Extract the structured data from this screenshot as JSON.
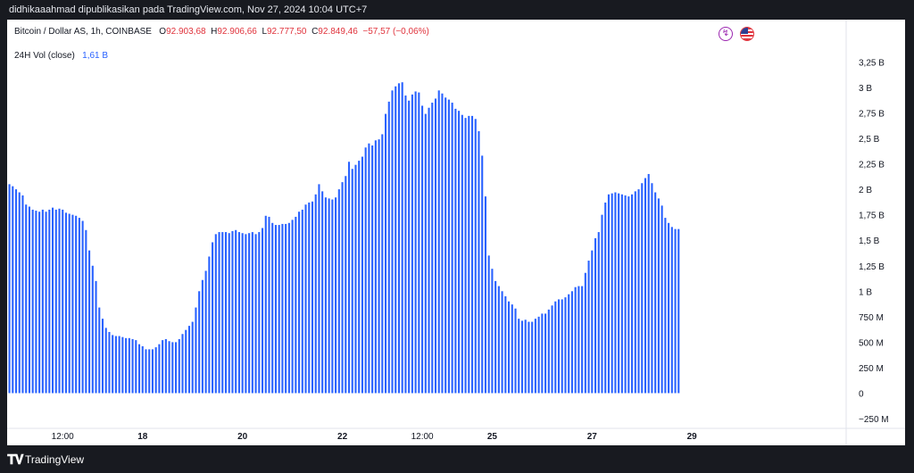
{
  "header": {
    "publish_line": "didhikaaahmad dipublikasikan pada TradingView.com, Nov 27, 2024 10:04 UTC+7"
  },
  "legend": {
    "symbol": "Bitcoin / Dollar AS, 1h, COINBASE",
    "open_label": "O",
    "open": "92.903,68",
    "high_label": "H",
    "high": "92.906,66",
    "low_label": "L",
    "low": "92.777,50",
    "close_label": "C",
    "close": "92.849,46",
    "change": "−57,57 (−0,06%)",
    "indicator_label": "24H Vol (close)",
    "indicator_value": "1,61 B"
  },
  "icons": [
    "lightning-icon",
    "us-flag-icon"
  ],
  "footer": {
    "brand": "TradingView",
    "logo": "TV-logo-icon"
  },
  "colors": {
    "bar": "#2962ff",
    "background": "#181a20",
    "panel": "#ffffff",
    "down": "#e0333c"
  },
  "chart_data": {
    "type": "bar",
    "title": "24H Vol (close)",
    "ylabel": "",
    "xlabel": "",
    "ylim": [
      -0.25,
      3.35
    ],
    "y_ticks": [
      {
        "v": 3.25,
        "label": "3,25 B"
      },
      {
        "v": 3.0,
        "label": "3 B"
      },
      {
        "v": 2.75,
        "label": "2,75 B"
      },
      {
        "v": 2.5,
        "label": "2,5 B"
      },
      {
        "v": 2.25,
        "label": "2,25 B"
      },
      {
        "v": 2.0,
        "label": "2 B"
      },
      {
        "v": 1.75,
        "label": "1,75 B"
      },
      {
        "v": 1.5,
        "label": "1,5 B"
      },
      {
        "v": 1.25,
        "label": "1,25 B"
      },
      {
        "v": 1.0,
        "label": "1 B"
      },
      {
        "v": 0.75,
        "label": "750 M"
      },
      {
        "v": 0.5,
        "label": "500 M"
      },
      {
        "v": 0.25,
        "label": "250 M"
      },
      {
        "v": 0.0,
        "label": "0"
      },
      {
        "v": -0.25,
        "label": "−250 M"
      }
    ],
    "x_ticks": [
      {
        "bar": 16,
        "label": "12:00",
        "bold": false
      },
      {
        "bar": 40,
        "label": "18",
        "bold": true
      },
      {
        "bar": 70,
        "label": "20",
        "bold": true
      },
      {
        "bar": 100,
        "label": "22",
        "bold": true
      },
      {
        "bar": 124,
        "label": "12:00",
        "bold": false
      },
      {
        "bar": 145,
        "label": "25",
        "bold": true
      },
      {
        "bar": 175,
        "label": "27",
        "bold": true
      },
      {
        "bar": 205,
        "label": "29",
        "bold": true
      }
    ],
    "series": [
      {
        "values": [
          2.05,
          2.03,
          2.0,
          1.97,
          1.94,
          1.85,
          1.83,
          1.8,
          1.79,
          1.78,
          1.8,
          1.78,
          1.8,
          1.82,
          1.8,
          1.81,
          1.8,
          1.77,
          1.76,
          1.75,
          1.74,
          1.72,
          1.69,
          1.6,
          1.4,
          1.25,
          1.1,
          0.84,
          0.73,
          0.64,
          0.6,
          0.57,
          0.56,
          0.56,
          0.55,
          0.54,
          0.54,
          0.53,
          0.52,
          0.48,
          0.46,
          0.43,
          0.43,
          0.43,
          0.45,
          0.48,
          0.52,
          0.53,
          0.51,
          0.5,
          0.5,
          0.53,
          0.58,
          0.62,
          0.66,
          0.7,
          0.84,
          1.0,
          1.11,
          1.2,
          1.34,
          1.48,
          1.56,
          1.58,
          1.58,
          1.58,
          1.57,
          1.59,
          1.6,
          1.58,
          1.57,
          1.56,
          1.57,
          1.58,
          1.56,
          1.58,
          1.62,
          1.74,
          1.73,
          1.67,
          1.65,
          1.65,
          1.66,
          1.66,
          1.67,
          1.7,
          1.73,
          1.78,
          1.8,
          1.85,
          1.87,
          1.88,
          1.95,
          2.05,
          1.98,
          1.92,
          1.91,
          1.9,
          1.92,
          2.0,
          2.07,
          2.13,
          2.27,
          2.2,
          2.24,
          2.28,
          2.32,
          2.41,
          2.45,
          2.43,
          2.48,
          2.49,
          2.54,
          2.74,
          2.86,
          2.97,
          3.01,
          3.04,
          3.05,
          2.92,
          2.87,
          2.93,
          2.96,
          2.95,
          2.82,
          2.74,
          2.8,
          2.85,
          2.89,
          2.97,
          2.94,
          2.9,
          2.88,
          2.85,
          2.79,
          2.77,
          2.73,
          2.7,
          2.72,
          2.72,
          2.69,
          2.57,
          2.33,
          1.93,
          1.35,
          1.22,
          1.1,
          1.05,
          1.0,
          0.95,
          0.9,
          0.87,
          0.83,
          0.73,
          0.71,
          0.72,
          0.7,
          0.7,
          0.73,
          0.75,
          0.78,
          0.78,
          0.82,
          0.86,
          0.9,
          0.92,
          0.92,
          0.94,
          0.97,
          1.0,
          1.04,
          1.05,
          1.05,
          1.18,
          1.3,
          1.4,
          1.52,
          1.58,
          1.75,
          1.87,
          1.95,
          1.96,
          1.97,
          1.96,
          1.95,
          1.94,
          1.93,
          1.95,
          1.98,
          2.0,
          2.06,
          2.11,
          2.15,
          2.06,
          1.97,
          1.91,
          1.84,
          1.72,
          1.67,
          1.63,
          1.61,
          1.61
        ]
      }
    ]
  }
}
